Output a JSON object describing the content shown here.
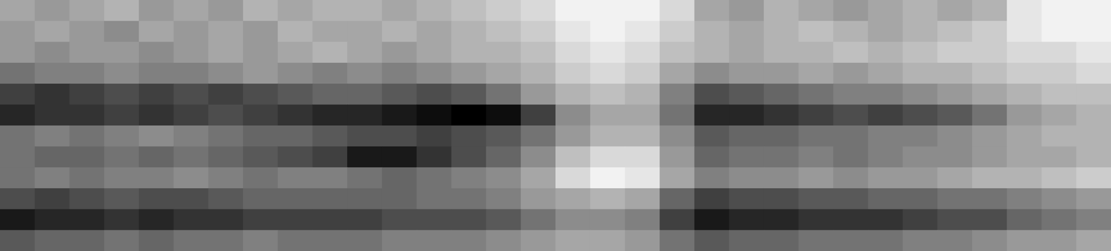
{
  "chart_data": {
    "type": "heatmap",
    "tick_labels": false,
    "cells": [
      [
        0.35,
        0.4,
        0.35,
        0.3,
        0.4,
        0.35,
        0.4,
        0.3,
        0.35,
        0.3,
        0.3,
        0.35,
        0.3,
        0.25,
        0.2,
        0.15,
        0.05,
        0.05,
        0.05,
        0.15,
        0.35,
        0.4,
        0.3,
        0.35,
        0.4,
        0.35,
        0.3,
        0.35,
        0.3,
        0.1,
        0.05,
        0.05
      ],
      [
        0.4,
        0.35,
        0.4,
        0.45,
        0.35,
        0.4,
        0.35,
        0.4,
        0.3,
        0.35,
        0.35,
        0.3,
        0.35,
        0.3,
        0.25,
        0.2,
        0.1,
        0.05,
        0.1,
        0.2,
        0.3,
        0.35,
        0.3,
        0.25,
        0.3,
        0.35,
        0.3,
        0.25,
        0.2,
        0.1,
        0.05,
        0.05
      ],
      [
        0.4,
        0.45,
        0.4,
        0.4,
        0.45,
        0.4,
        0.35,
        0.4,
        0.35,
        0.3,
        0.35,
        0.4,
        0.35,
        0.3,
        0.3,
        0.25,
        0.15,
        0.1,
        0.15,
        0.25,
        0.3,
        0.35,
        0.3,
        0.3,
        0.25,
        0.3,
        0.25,
        0.2,
        0.2,
        0.15,
        0.15,
        0.1
      ],
      [
        0.55,
        0.5,
        0.5,
        0.45,
        0.5,
        0.5,
        0.45,
        0.4,
        0.45,
        0.5,
        0.45,
        0.5,
        0.45,
        0.4,
        0.35,
        0.3,
        0.2,
        0.15,
        0.2,
        0.35,
        0.45,
        0.4,
        0.4,
        0.35,
        0.4,
        0.35,
        0.3,
        0.3,
        0.25,
        0.2,
        0.2,
        0.15
      ],
      [
        0.75,
        0.8,
        0.75,
        0.7,
        0.75,
        0.7,
        0.75,
        0.7,
        0.65,
        0.6,
        0.6,
        0.65,
        0.7,
        0.65,
        0.55,
        0.4,
        0.3,
        0.25,
        0.3,
        0.5,
        0.7,
        0.65,
        0.6,
        0.55,
        0.5,
        0.5,
        0.45,
        0.4,
        0.35,
        0.3,
        0.25,
        0.25
      ],
      [
        0.85,
        0.8,
        0.8,
        0.75,
        0.8,
        0.75,
        0.7,
        0.75,
        0.8,
        0.85,
        0.85,
        0.9,
        0.95,
        1.0,
        0.95,
        0.75,
        0.45,
        0.35,
        0.35,
        0.55,
        0.85,
        0.85,
        0.8,
        0.75,
        0.7,
        0.75,
        0.7,
        0.65,
        0.55,
        0.4,
        0.35,
        0.3
      ],
      [
        0.55,
        0.5,
        0.55,
        0.5,
        0.45,
        0.5,
        0.55,
        0.6,
        0.6,
        0.65,
        0.7,
        0.7,
        0.75,
        0.7,
        0.65,
        0.55,
        0.4,
        0.3,
        0.3,
        0.45,
        0.65,
        0.6,
        0.6,
        0.55,
        0.55,
        0.5,
        0.5,
        0.45,
        0.4,
        0.35,
        0.3,
        0.3
      ],
      [
        0.55,
        0.6,
        0.6,
        0.55,
        0.6,
        0.55,
        0.6,
        0.65,
        0.7,
        0.75,
        0.9,
        0.9,
        0.8,
        0.7,
        0.6,
        0.45,
        0.25,
        0.15,
        0.15,
        0.4,
        0.6,
        0.55,
        0.55,
        0.5,
        0.55,
        0.5,
        0.45,
        0.45,
        0.4,
        0.35,
        0.35,
        0.3
      ],
      [
        0.55,
        0.5,
        0.55,
        0.5,
        0.5,
        0.45,
        0.5,
        0.55,
        0.5,
        0.5,
        0.55,
        0.6,
        0.55,
        0.5,
        0.45,
        0.35,
        0.15,
        0.05,
        0.1,
        0.35,
        0.5,
        0.45,
        0.45,
        0.4,
        0.45,
        0.4,
        0.4,
        0.35,
        0.3,
        0.3,
        0.25,
        0.2
      ],
      [
        0.7,
        0.75,
        0.7,
        0.65,
        0.7,
        0.7,
        0.65,
        0.6,
        0.6,
        0.6,
        0.6,
        0.6,
        0.55,
        0.55,
        0.5,
        0.4,
        0.35,
        0.3,
        0.35,
        0.6,
        0.75,
        0.7,
        0.7,
        0.65,
        0.65,
        0.6,
        0.6,
        0.55,
        0.55,
        0.5,
        0.45,
        0.4
      ],
      [
        0.9,
        0.85,
        0.85,
        0.8,
        0.85,
        0.8,
        0.8,
        0.75,
        0.75,
        0.75,
        0.75,
        0.7,
        0.7,
        0.7,
        0.65,
        0.55,
        0.45,
        0.45,
        0.5,
        0.75,
        0.9,
        0.85,
        0.85,
        0.8,
        0.8,
        0.8,
        0.75,
        0.7,
        0.7,
        0.6,
        0.55,
        0.5
      ],
      [
        0.65,
        0.6,
        0.6,
        0.55,
        0.6,
        0.55,
        0.55,
        0.5,
        0.55,
        0.55,
        0.55,
        0.5,
        0.5,
        0.5,
        0.45,
        0.4,
        0.35,
        0.35,
        0.4,
        0.55,
        0.65,
        0.6,
        0.6,
        0.55,
        0.55,
        0.55,
        0.5,
        0.5,
        0.45,
        0.4,
        0.4,
        0.35
      ]
    ]
  }
}
